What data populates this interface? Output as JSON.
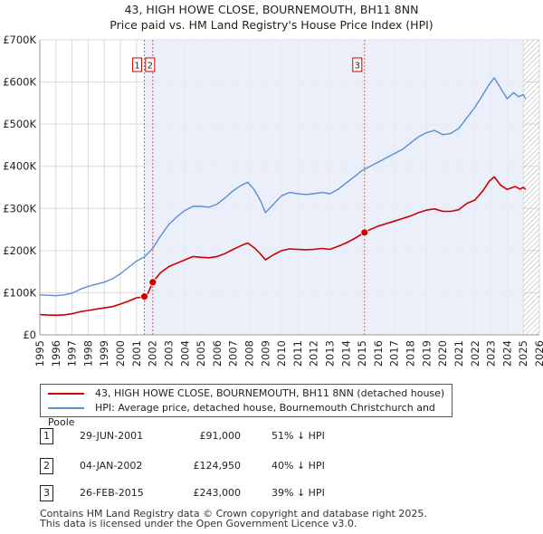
{
  "title": {
    "line1": "43, HIGH HOWE CLOSE, BOURNEMOUTH, BH11 8NN",
    "line2": "Price paid vs. HM Land Registry's House Price Index (HPI)"
  },
  "chart_data": {
    "type": "line",
    "title": "43, HIGH HOWE CLOSE, BOURNEMOUTH, BH11 8NN — Price paid vs. HM Land Registry's House Price Index (HPI)",
    "xlabel": "",
    "ylabel": "",
    "xlim": [
      1995,
      2026
    ],
    "ylim": [
      0,
      700000
    ],
    "grid": true,
    "legend_position": "below",
    "x_ticks": [
      "1995",
      "1996",
      "1997",
      "1998",
      "1999",
      "2000",
      "2001",
      "2002",
      "2003",
      "2004",
      "2005",
      "2006",
      "2007",
      "2008",
      "2009",
      "2010",
      "2011",
      "2012",
      "2013",
      "2014",
      "2015",
      "2016",
      "2017",
      "2018",
      "2019",
      "2020",
      "2021",
      "2022",
      "2023",
      "2024",
      "2025",
      "2026"
    ],
    "y_ticks": [
      {
        "value": 0,
        "label": "£0"
      },
      {
        "value": 100000,
        "label": "£100K"
      },
      {
        "value": 200000,
        "label": "£200K"
      },
      {
        "value": 300000,
        "label": "£300K"
      },
      {
        "value": 400000,
        "label": "£400K"
      },
      {
        "value": 500000,
        "label": "£500K"
      },
      {
        "value": 600000,
        "label": "£600K"
      },
      {
        "value": 700000,
        "label": "£700K"
      }
    ],
    "colors": {
      "property": "#cc0000",
      "hpi": "#5b8fd0",
      "shade": "#e6ecf8",
      "hatch": "#b0b0b0",
      "vline": "#dd5555"
    },
    "hatch_from": 2025.0,
    "series": [
      {
        "name": "43, HIGH HOWE CLOSE, BOURNEMOUTH, BH11 8NN (detached house)",
        "key": "property",
        "points": [
          [
            1995.0,
            48000
          ],
          [
            1995.5,
            47000
          ],
          [
            1996.0,
            46500
          ],
          [
            1996.5,
            47500
          ],
          [
            1997.0,
            50000
          ],
          [
            1997.5,
            55000
          ],
          [
            1998.0,
            58000
          ],
          [
            1998.5,
            61000
          ],
          [
            1999.0,
            64000
          ],
          [
            1999.5,
            67000
          ],
          [
            2000.0,
            73000
          ],
          [
            2000.5,
            80000
          ],
          [
            2001.0,
            88000
          ],
          [
            2001.3,
            89000
          ],
          [
            2001.49,
            91000
          ],
          [
            2001.7,
            98000
          ],
          [
            2002.01,
            124950
          ],
          [
            2002.5,
            148000
          ],
          [
            2003.0,
            162000
          ],
          [
            2003.5,
            170000
          ],
          [
            2004.0,
            178000
          ],
          [
            2004.5,
            186000
          ],
          [
            2005.0,
            184000
          ],
          [
            2005.5,
            183000
          ],
          [
            2006.0,
            186000
          ],
          [
            2006.5,
            193000
          ],
          [
            2007.0,
            203000
          ],
          [
            2007.5,
            212000
          ],
          [
            2007.9,
            218000
          ],
          [
            2008.3,
            207000
          ],
          [
            2008.7,
            192000
          ],
          [
            2009.0,
            178000
          ],
          [
            2009.5,
            190000
          ],
          [
            2010.0,
            200000
          ],
          [
            2010.5,
            204000
          ],
          [
            2011.0,
            203000
          ],
          [
            2011.5,
            202000
          ],
          [
            2012.0,
            203000
          ],
          [
            2012.5,
            205000
          ],
          [
            2013.0,
            203000
          ],
          [
            2013.5,
            210000
          ],
          [
            2014.0,
            218000
          ],
          [
            2014.5,
            228000
          ],
          [
            2015.15,
            243000
          ],
          [
            2015.5,
            250000
          ],
          [
            2016.0,
            258000
          ],
          [
            2016.5,
            264000
          ],
          [
            2017.0,
            270000
          ],
          [
            2017.5,
            276000
          ],
          [
            2018.0,
            282000
          ],
          [
            2018.5,
            290000
          ],
          [
            2019.0,
            296000
          ],
          [
            2019.5,
            299000
          ],
          [
            2020.0,
            293000
          ],
          [
            2020.5,
            293000
          ],
          [
            2021.0,
            297000
          ],
          [
            2021.5,
            312000
          ],
          [
            2022.0,
            320000
          ],
          [
            2022.5,
            342000
          ],
          [
            2022.9,
            365000
          ],
          [
            2023.2,
            375000
          ],
          [
            2023.6,
            355000
          ],
          [
            2024.0,
            345000
          ],
          [
            2024.5,
            352000
          ],
          [
            2024.8,
            346000
          ],
          [
            2025.0,
            350000
          ],
          [
            2025.15,
            345000
          ]
        ]
      },
      {
        "name": "HPI: Average price, detached house, Bournemouth Christchurch and Poole",
        "key": "hpi",
        "points": [
          [
            1995.0,
            95000
          ],
          [
            1995.5,
            94000
          ],
          [
            1996.0,
            93000
          ],
          [
            1996.5,
            95000
          ],
          [
            1997.0,
            99000
          ],
          [
            1997.5,
            108000
          ],
          [
            1998.0,
            115000
          ],
          [
            1998.5,
            120000
          ],
          [
            1999.0,
            125000
          ],
          [
            1999.5,
            133000
          ],
          [
            2000.0,
            145000
          ],
          [
            2000.5,
            160000
          ],
          [
            2001.0,
            175000
          ],
          [
            2001.5,
            185000
          ],
          [
            2002.0,
            205000
          ],
          [
            2002.5,
            235000
          ],
          [
            2003.0,
            262000
          ],
          [
            2003.5,
            280000
          ],
          [
            2004.0,
            295000
          ],
          [
            2004.5,
            305000
          ],
          [
            2005.0,
            305000
          ],
          [
            2005.5,
            303000
          ],
          [
            2006.0,
            310000
          ],
          [
            2006.5,
            325000
          ],
          [
            2007.0,
            342000
          ],
          [
            2007.5,
            355000
          ],
          [
            2007.9,
            362000
          ],
          [
            2008.3,
            345000
          ],
          [
            2008.7,
            318000
          ],
          [
            2009.0,
            290000
          ],
          [
            2009.5,
            310000
          ],
          [
            2010.0,
            330000
          ],
          [
            2010.5,
            338000
          ],
          [
            2011.0,
            335000
          ],
          [
            2011.5,
            333000
          ],
          [
            2012.0,
            335000
          ],
          [
            2012.5,
            338000
          ],
          [
            2013.0,
            335000
          ],
          [
            2013.5,
            345000
          ],
          [
            2014.0,
            360000
          ],
          [
            2014.5,
            375000
          ],
          [
            2015.0,
            390000
          ],
          [
            2015.5,
            400000
          ],
          [
            2016.0,
            410000
          ],
          [
            2016.5,
            420000
          ],
          [
            2017.0,
            430000
          ],
          [
            2017.5,
            440000
          ],
          [
            2018.0,
            455000
          ],
          [
            2018.5,
            470000
          ],
          [
            2019.0,
            480000
          ],
          [
            2019.5,
            485000
          ],
          [
            2020.0,
            475000
          ],
          [
            2020.5,
            478000
          ],
          [
            2021.0,
            490000
          ],
          [
            2021.5,
            515000
          ],
          [
            2022.0,
            540000
          ],
          [
            2022.5,
            570000
          ],
          [
            2022.9,
            595000
          ],
          [
            2023.2,
            610000
          ],
          [
            2023.6,
            585000
          ],
          [
            2024.0,
            560000
          ],
          [
            2024.4,
            575000
          ],
          [
            2024.7,
            565000
          ],
          [
            2025.0,
            570000
          ],
          [
            2025.15,
            560000
          ]
        ]
      }
    ],
    "transactions": [
      {
        "id": "1",
        "x": 2001.49,
        "price": 91000
      },
      {
        "id": "2",
        "x": 2002.01,
        "price": 124950
      },
      {
        "id": "3",
        "x": 2015.15,
        "price": 243000
      }
    ]
  },
  "legend": {
    "property_label": "43, HIGH HOWE CLOSE, BOURNEMOUTH, BH11 8NN (detached house)",
    "hpi_label": "HPI: Average price, detached house, Bournemouth Christchurch and Poole"
  },
  "transactions_table": [
    {
      "num": "1",
      "date": "29-JUN-2001",
      "price": "£91,000",
      "hpi": "51% ↓ HPI"
    },
    {
      "num": "2",
      "date": "04-JAN-2002",
      "price": "£124,950",
      "hpi": "40% ↓ HPI"
    },
    {
      "num": "3",
      "date": "26-FEB-2015",
      "price": "£243,000",
      "hpi": "39% ↓ HPI"
    }
  ],
  "footer": {
    "line1": "Contains HM Land Registry data © Crown copyright and database right 2025.",
    "line2": "This data is licensed under the Open Government Licence v3.0."
  }
}
